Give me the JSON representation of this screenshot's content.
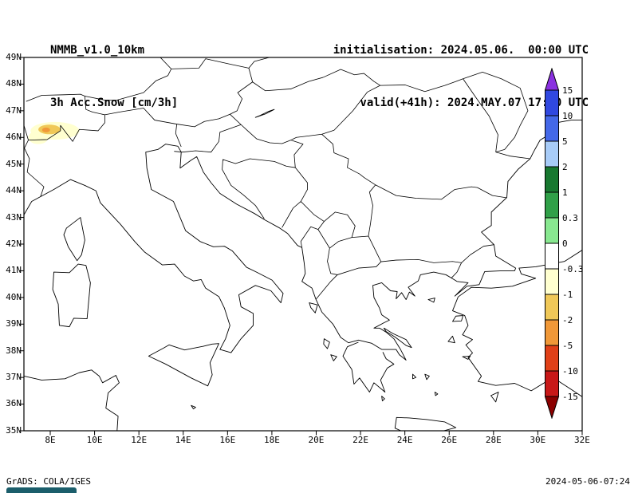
{
  "header": {
    "model": "NMMB_v1.0_10km",
    "field": "3h Acc.Snow [cm/3h]",
    "init_line": "initialisation: 2024.05.06.  00:00 UTC",
    "valid_line": "valid(+41h): 2024.MAY.07 17:00 UTC"
  },
  "map": {
    "lat_ticks": [
      "49N",
      "48N",
      "47N",
      "46N",
      "45N",
      "44N",
      "43N",
      "42N",
      "41N",
      "40N",
      "39N",
      "38N",
      "37N",
      "36N",
      "35N"
    ],
    "lon_ticks": [
      "8E",
      "10E",
      "12E",
      "14E",
      "16E",
      "18E",
      "20E",
      "22E",
      "24E",
      "26E",
      "28E",
      "30E",
      "32E"
    ],
    "snow_feature": "small shaded accumulation patch over the western Alps near 46N, 7E-9E"
  },
  "colorbar": {
    "labels": [
      "15",
      "10",
      "5",
      "2",
      "1",
      "0.3",
      "0",
      "-0.3",
      "-1",
      "-2",
      "-5",
      "-10",
      "-15"
    ],
    "segments": [
      "#3048e0",
      "#4468e8",
      "#a8ccf8",
      "#187830",
      "#30a048",
      "#88e890",
      "#ffffff",
      "#ffffd0",
      "#f0c858",
      "#f09838",
      "#e04018",
      "#c81818"
    ],
    "arrow_top": "#8a30e0",
    "arrow_bottom": "#8b0000"
  },
  "footer": {
    "credit": "GrADS: COLA/IGES",
    "box_color": "#1b5e6b",
    "timestamp": "2024-05-06-07:24"
  }
}
